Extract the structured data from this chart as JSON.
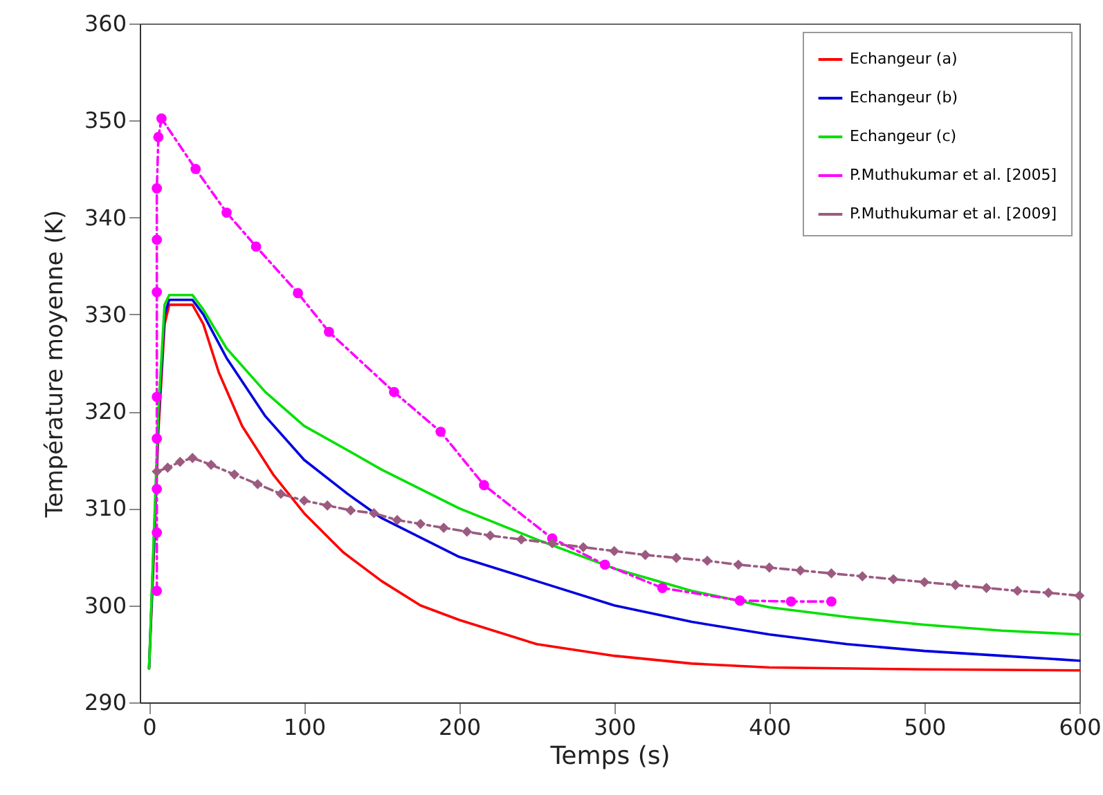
{
  "chart_data": {
    "type": "line",
    "xlabel": "Temps (s)",
    "ylabel": "Température moyenne (K)",
    "xlim": [
      -6,
      600
    ],
    "ylim": [
      290,
      360
    ],
    "xticks": [
      0,
      100,
      200,
      300,
      400,
      500,
      600
    ],
    "yticks": [
      290,
      300,
      310,
      320,
      330,
      340,
      350,
      360
    ],
    "grid": false,
    "legend": "top right",
    "series": [
      {
        "name": "Echangeur (a)",
        "color": "#ff0000",
        "line_style": "solid",
        "marker": "none",
        "x": [
          0,
          3,
          6,
          10,
          13,
          28,
          35,
          45,
          60,
          80,
          100,
          125,
          150,
          175,
          200,
          250,
          300,
          350,
          400,
          500,
          600
        ],
        "values": [
          293.5,
          305,
          318,
          329,
          331,
          331,
          329,
          324,
          318.5,
          313.5,
          309.5,
          305.5,
          302.5,
          300,
          298.5,
          296,
          294.8,
          294,
          293.6,
          293.4,
          293.3
        ]
      },
      {
        "name": "Echangeur (b)",
        "color": "#0000e0",
        "line_style": "solid",
        "marker": "none",
        "x": [
          0,
          3,
          6,
          10,
          13,
          28,
          35,
          50,
          75,
          100,
          128,
          150,
          200,
          250,
          300,
          350,
          400,
          450,
          500,
          550,
          600
        ],
        "values": [
          293.5,
          306,
          319,
          330,
          331.5,
          331.5,
          330,
          325.5,
          319.5,
          315,
          311.5,
          309,
          305,
          302.5,
          300,
          298.3,
          297,
          296,
          295.3,
          294.8,
          294.3
        ]
      },
      {
        "name": "Echangeur (c)",
        "color": "#00e000",
        "line_style": "solid",
        "marker": "none",
        "x": [
          0,
          3,
          6,
          10,
          13,
          28,
          35,
          50,
          75,
          100,
          128,
          150,
          200,
          250,
          300,
          350,
          400,
          450,
          500,
          550,
          600
        ],
        "values": [
          293.5,
          307,
          320,
          331,
          332,
          332,
          330.5,
          326.5,
          322,
          318.5,
          316,
          314,
          310,
          306.8,
          303.8,
          301.5,
          299.8,
          298.8,
          298,
          297.4,
          297
        ]
      },
      {
        "name": "P.Muthukumar et al. [2005]",
        "color": "#ff00ff",
        "line_style": "dashed",
        "marker": "circle",
        "x": [
          5,
          5,
          5,
          5,
          5,
          5,
          5,
          5,
          6,
          8,
          30,
          50,
          69,
          96,
          116,
          158,
          188,
          216,
          260,
          294,
          331,
          381,
          414,
          440
        ],
        "values": [
          301.5,
          307.5,
          312,
          317.2,
          321.5,
          332.3,
          337.7,
          343,
          348.3,
          350.2,
          345,
          340.5,
          337,
          332.2,
          328.2,
          322,
          317.9,
          312.4,
          306.9,
          304.2,
          301.8,
          300.5,
          300.4,
          300.4
        ]
      },
      {
        "name": "P.Muthukumar et al. [2009]",
        "color": "#9b5b80",
        "line_style": "dashed",
        "marker": "diamond",
        "x": [
          5,
          12,
          20,
          28,
          40,
          55,
          70,
          85,
          100,
          115,
          130,
          145,
          160,
          175,
          190,
          205,
          220,
          240,
          260,
          280,
          300,
          320,
          340,
          360,
          380,
          400,
          420,
          440,
          460,
          480,
          500,
          520,
          540,
          560,
          580,
          600
        ],
        "values": [
          313.8,
          314.2,
          314.8,
          315.2,
          314.5,
          313.5,
          312.5,
          311.5,
          310.8,
          310.3,
          309.8,
          309.5,
          308.8,
          308.4,
          308,
          307.6,
          307.2,
          306.8,
          306.4,
          306,
          305.6,
          305.2,
          304.9,
          304.6,
          304.2,
          303.9,
          303.6,
          303.3,
          303,
          302.7,
          302.4,
          302.1,
          301.8,
          301.5,
          301.3,
          301
        ]
      }
    ]
  }
}
